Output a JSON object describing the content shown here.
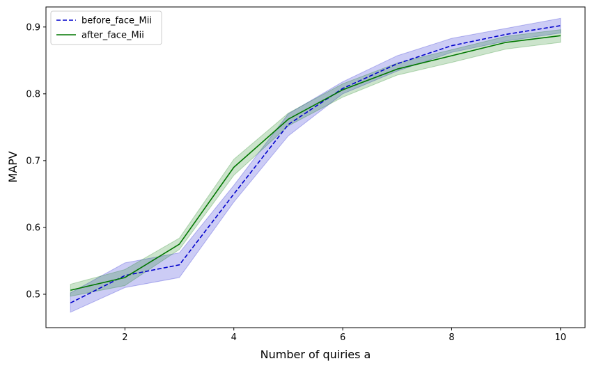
{
  "chart_data": {
    "type": "line",
    "title": "",
    "xlabel": "Number of quiries a",
    "ylabel": "MAPV",
    "x": [
      1,
      2,
      3,
      4,
      5,
      6,
      7,
      8,
      9,
      10
    ],
    "xlim": [
      0.55,
      10.45
    ],
    "ylim": [
      0.45,
      0.93
    ],
    "xticks": [
      2,
      4,
      6,
      8,
      10
    ],
    "yticks": [
      0.5,
      0.6,
      0.7,
      0.8,
      0.9
    ],
    "grid": false,
    "legend_position": "top-left",
    "series": [
      {
        "name": "before_face_Mii",
        "color": "#0000cc",
        "line_style": "dashed",
        "values": [
          0.487,
          0.528,
          0.544,
          0.65,
          0.754,
          0.808,
          0.845,
          0.872,
          0.889,
          0.902
        ],
        "band_lower": [
          0.473,
          0.51,
          0.525,
          0.638,
          0.737,
          0.8,
          0.834,
          0.862,
          0.879,
          0.891
        ],
        "band_upper": [
          0.502,
          0.547,
          0.562,
          0.663,
          0.77,
          0.818,
          0.857,
          0.883,
          0.898,
          0.913
        ]
      },
      {
        "name": "after_face_Mii",
        "color": "#007700",
        "line_style": "solid",
        "values": [
          0.506,
          0.525,
          0.575,
          0.69,
          0.762,
          0.806,
          0.837,
          0.857,
          0.877,
          0.887
        ],
        "band_lower": [
          0.497,
          0.513,
          0.567,
          0.678,
          0.752,
          0.795,
          0.828,
          0.847,
          0.867,
          0.877
        ],
        "band_upper": [
          0.515,
          0.537,
          0.584,
          0.702,
          0.771,
          0.815,
          0.846,
          0.866,
          0.886,
          0.896
        ]
      }
    ]
  }
}
